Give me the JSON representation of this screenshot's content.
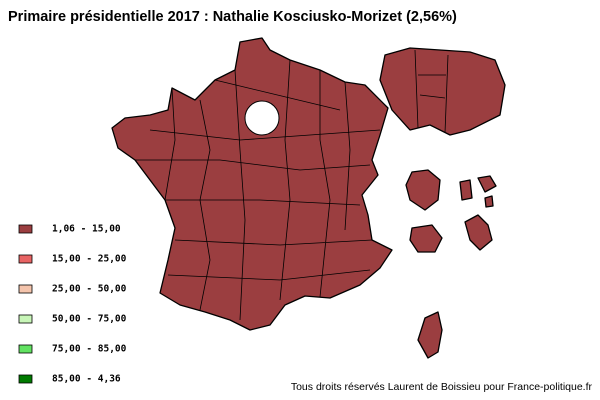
{
  "title": "Primaire présidentielle 2017 : Nathalie Kosciusko-Morizet (2,56%)",
  "legend": [
    {
      "label": "1,06 - 15,00",
      "color": "#9b3e40"
    },
    {
      "label": "15,00 - 25,00",
      "color": "#e86464"
    },
    {
      "label": "25,00 - 50,00",
      "color": "#f4c4ac"
    },
    {
      "label": "50,00 - 75,00",
      "color": "#c8f6b8"
    },
    {
      "label": "75,00 - 85,00",
      "color": "#62e262"
    },
    {
      "label": "85,00 - 4,36",
      "color": "#007a00"
    }
  ],
  "credit": "Tous droits réservés Laurent de Boissieu pour France-politique.fr"
}
